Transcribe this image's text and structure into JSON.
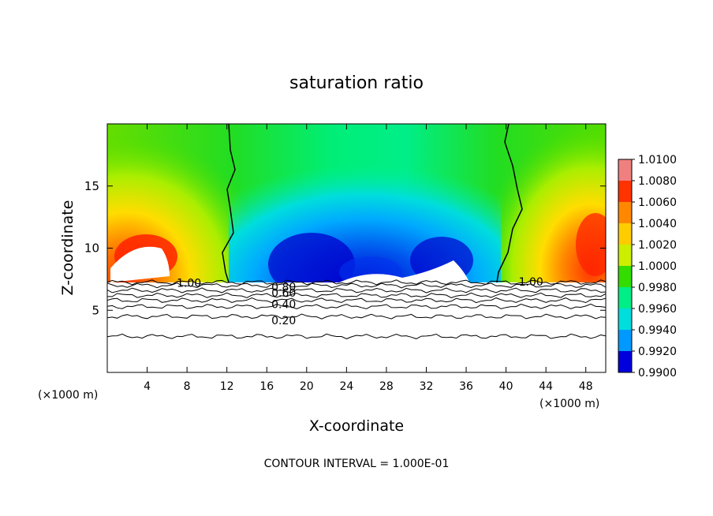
{
  "chart_data": {
    "type": "heatmap",
    "title": "saturation ratio",
    "xlabel": "X-coordinate",
    "ylabel": "Z-coordinate",
    "x_unit_left": "(×1000 m)",
    "x_unit_right": "(×1000 m)",
    "footer": "CONTOUR INTERVAL = 1.000E-01",
    "xlim": [
      0,
      50
    ],
    "ylim": [
      0,
      20
    ],
    "x_ticks": [
      "4",
      "8",
      "12",
      "16",
      "20",
      "24",
      "28",
      "32",
      "36",
      "40",
      "44",
      "48"
    ],
    "x_tick_values": [
      4,
      8,
      12,
      16,
      20,
      24,
      28,
      32,
      36,
      40,
      44,
      48
    ],
    "y_ticks": [
      "5",
      "10",
      "15"
    ],
    "y_tick_values": [
      5,
      10,
      15
    ],
    "colorbar": {
      "labels": [
        "1.0100",
        "1.0080",
        "1.0060",
        "1.0040",
        "1.0020",
        "1.0000",
        "0.9980",
        "0.9960",
        "0.9940",
        "0.9920",
        "0.9900"
      ],
      "values": [
        1.01,
        1.008,
        1.006,
        1.004,
        1.002,
        1.0,
        0.998,
        0.996,
        0.994,
        0.992,
        0.99
      ],
      "colors": [
        "#f08080",
        "#ff3300",
        "#ff8800",
        "#ffcc00",
        "#ccee00",
        "#33dd00",
        "#00ee88",
        "#00dddd",
        "#0099ff",
        "#0000dd",
        "#660099"
      ]
    },
    "contour_labels": [
      {
        "text": "1.00",
        "x": 8.2,
        "z": 7.2
      },
      {
        "text": "1.00",
        "x": 42.5,
        "z": 7.3
      },
      {
        "text": "0.80",
        "x": 17.7,
        "z": 6.9
      },
      {
        "text": "0.60",
        "x": 17.7,
        "z": 6.4
      },
      {
        "text": "0.40",
        "x": 17.7,
        "z": 5.5
      },
      {
        "text": "0.20",
        "x": 17.7,
        "z": 4.2
      }
    ],
    "contour_levels_z": [
      7.25,
      7.0,
      6.6,
      6.2,
      5.8,
      5.3,
      4.5,
      2.9
    ]
  }
}
